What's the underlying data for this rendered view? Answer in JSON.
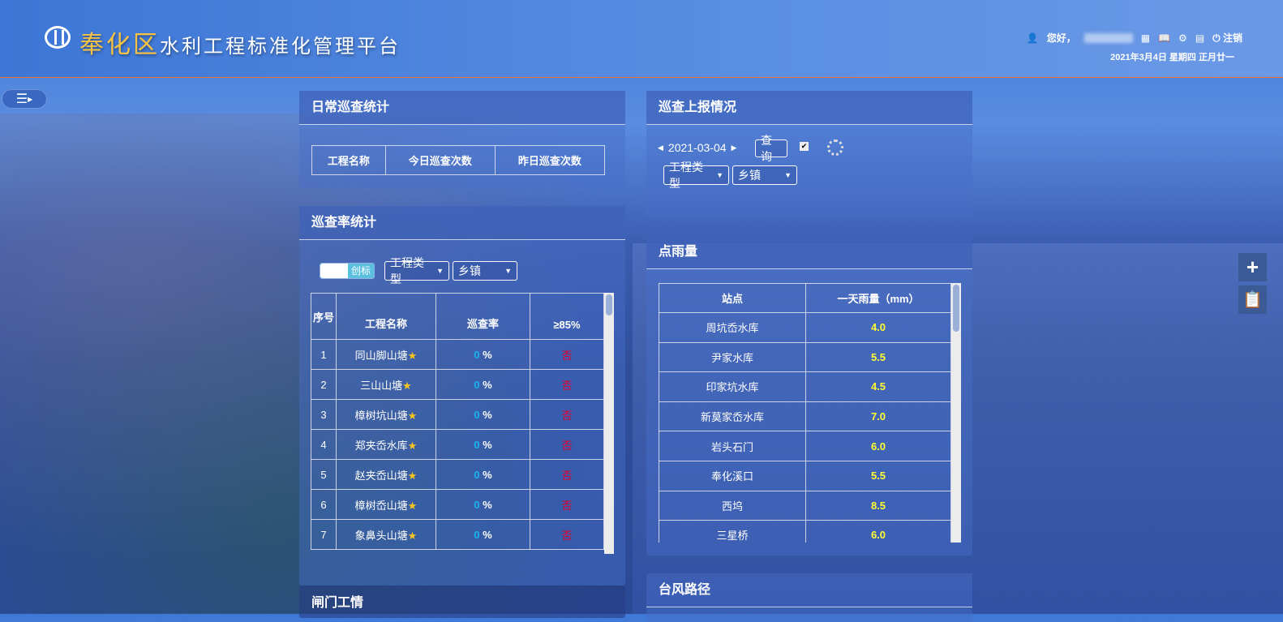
{
  "header": {
    "title_highlight": "奉化区",
    "title_rest": "水利工程标准化管理平台",
    "greeting": "您好，",
    "logout": "注销",
    "date": "2021年3月4日  星期四  正月廿一"
  },
  "daily": {
    "title": "日常巡查统计",
    "columns": [
      "工程名称",
      "今日巡查次数",
      "昨日巡查次数"
    ]
  },
  "rate": {
    "title": "巡查率统计",
    "toggle_label": "创标",
    "type_select": "工程类型",
    "town_select": "乡镇",
    "columns": [
      "序号",
      "工程名称",
      "巡查率",
      "≥85%"
    ],
    "rows": [
      {
        "no": "1",
        "name": "同山脚山塘",
        "rate": "0",
        "ok": "否"
      },
      {
        "no": "2",
        "name": "三山山塘",
        "rate": "0",
        "ok": "否"
      },
      {
        "no": "3",
        "name": "樟树坑山塘",
        "rate": "0",
        "ok": "否"
      },
      {
        "no": "4",
        "name": "郑夹岙水库",
        "rate": "0",
        "ok": "否"
      },
      {
        "no": "5",
        "name": "赵夹岙山塘",
        "rate": "0",
        "ok": "否"
      },
      {
        "no": "6",
        "name": "樟树岙山塘",
        "rate": "0",
        "ok": "否"
      },
      {
        "no": "7",
        "name": "象鼻头山塘",
        "rate": "0",
        "ok": "否"
      }
    ]
  },
  "gate": {
    "title": "闸门工情"
  },
  "report": {
    "title": "巡查上报情况",
    "date": "2021-03-04",
    "query": "查询",
    "checked": true,
    "type_select": "工程类型",
    "town_select": "乡镇"
  },
  "rain": {
    "title": "点雨量",
    "columns": [
      "站点",
      "一天雨量（mm）"
    ],
    "rows": [
      {
        "site": "周坑岙水库",
        "mm": "4.0"
      },
      {
        "site": "尹家水库",
        "mm": "5.5"
      },
      {
        "site": "印家坑水库",
        "mm": "4.5"
      },
      {
        "site": "新莫家岙水库",
        "mm": "7.0"
      },
      {
        "site": "岩头石门",
        "mm": "6.0"
      },
      {
        "site": "奉化溪口",
        "mm": "5.5"
      },
      {
        "site": "西坞",
        "mm": "8.5"
      },
      {
        "site": "三星桥",
        "mm": "6.0"
      }
    ]
  },
  "typhoon": {
    "title": "台风路径"
  },
  "colors": {
    "accent": "#1ab3f0",
    "no": "#e6002a",
    "rain": "#ffff33",
    "title_gold": "#f6c343"
  }
}
